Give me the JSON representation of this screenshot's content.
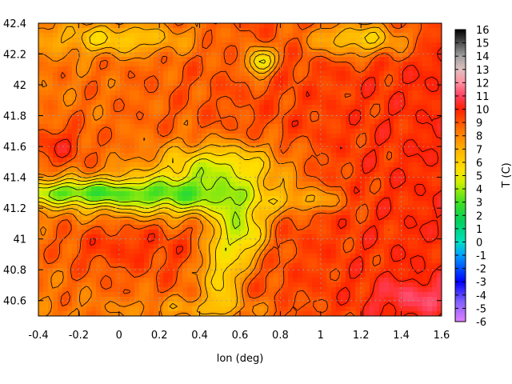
{
  "chart_data": {
    "type": "heatmap",
    "title": "",
    "xlabel": "lon (deg)",
    "ylabel": "",
    "xlim": [
      -0.4,
      1.6
    ],
    "ylim": [
      40.5,
      42.4
    ],
    "x_ticks": [
      "-0.4",
      "-0.2",
      "0",
      "0.2",
      "0.4",
      "0.6",
      "0.8",
      "1",
      "1.2",
      "1.4",
      "1.6"
    ],
    "y_ticks": [
      "40.6",
      "40.8",
      "41",
      "41.2",
      "41.4",
      "41.6",
      "41.8",
      "42",
      "42.2",
      "42.4"
    ],
    "grid": true,
    "contours": true,
    "colorbar": {
      "label": "T (C)",
      "min": -6,
      "max": 16,
      "ticks": [
        "16",
        "15",
        "14",
        "13",
        "12",
        "11",
        "10",
        "9",
        "8",
        "7",
        "6",
        "5",
        "4",
        "3",
        "2",
        "1",
        "0",
        "-1",
        "-2",
        "-3",
        "-4",
        "-5",
        "-6"
      ],
      "palette": [
        {
          "value": -6,
          "color": "#e080ff"
        },
        {
          "value": -4.5,
          "color": "#8060ff"
        },
        {
          "value": -3,
          "color": "#0000ff"
        },
        {
          "value": -1,
          "color": "#00a0ff"
        },
        {
          "value": 0,
          "color": "#00e0c0"
        },
        {
          "value": 1.5,
          "color": "#00d060"
        },
        {
          "value": 3,
          "color": "#40e020"
        },
        {
          "value": 4.5,
          "color": "#d0f000"
        },
        {
          "value": 5.5,
          "color": "#ffe000"
        },
        {
          "value": 7,
          "color": "#ffb000"
        },
        {
          "value": 8.5,
          "color": "#ff7000"
        },
        {
          "value": 10,
          "color": "#ff2000"
        },
        {
          "value": 11,
          "color": "#ff4060"
        },
        {
          "value": 12,
          "color": "#ff90a0"
        },
        {
          "value": 13,
          "color": "#e0c0c0"
        },
        {
          "value": 14,
          "color": "#a0a0a0"
        },
        {
          "value": 16,
          "color": "#000000"
        }
      ]
    },
    "field": {
      "base": 8.3,
      "lon_gradient": 1.6,
      "anomalies": [
        {
          "lon": 0.3,
          "lat": 41.28,
          "slon": 0.32,
          "slat": 0.09,
          "amp": -5.2
        },
        {
          "lon": -0.25,
          "lat": 41.3,
          "slon": 0.22,
          "slat": 0.06,
          "amp": -4.2
        },
        {
          "lon": 0.5,
          "lat": 41.48,
          "slon": 0.22,
          "slat": 0.1,
          "amp": -4.0
        },
        {
          "lon": 0.6,
          "lat": 41.05,
          "slon": 0.09,
          "slat": 0.14,
          "amp": -4.6
        },
        {
          "lon": 0.5,
          "lat": 40.75,
          "slon": 0.07,
          "slat": 0.16,
          "amp": -3.2
        },
        {
          "lon": 0.7,
          "lat": 42.15,
          "slon": 0.05,
          "slat": 0.06,
          "amp": -4.5
        },
        {
          "lon": 1.2,
          "lat": 42.3,
          "slon": 0.18,
          "slat": 0.08,
          "amp": -3.5
        },
        {
          "lon": 0.0,
          "lat": 42.3,
          "slon": 0.25,
          "slat": 0.07,
          "amp": -2.6
        },
        {
          "lon": -0.3,
          "lat": 41.6,
          "slon": 0.1,
          "slat": 0.1,
          "amp": 1.5
        },
        {
          "lon": 1.45,
          "lat": 40.62,
          "slon": 0.15,
          "slat": 0.08,
          "amp": 1.2
        },
        {
          "lon": 0.0,
          "lat": 40.95,
          "slon": 0.25,
          "slat": 0.12,
          "amp": 1.0
        },
        {
          "lon": 0.95,
          "lat": 41.25,
          "slon": 0.12,
          "slat": 0.05,
          "amp": -1.8
        },
        {
          "lon": 0.4,
          "lat": 40.55,
          "slon": 0.3,
          "slat": 0.05,
          "amp": -1.4
        }
      ]
    }
  }
}
